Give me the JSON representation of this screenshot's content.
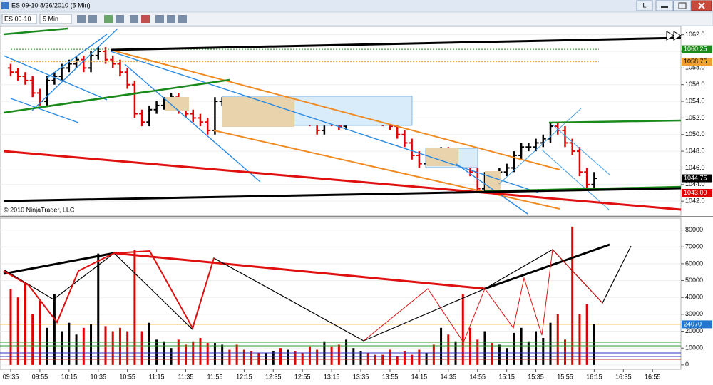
{
  "window": {
    "title": "ES 09-10  8/26/2010 (5 Min)",
    "instrument": "ES 09-10",
    "interval": "5 Min",
    "button": "L"
  },
  "chart_data": [
    {
      "type": "ohlc",
      "copyright": "© 2010 NinjaTrader, LLC",
      "up_color": "#000000",
      "down_color": "#e00000",
      "ylim": [
        1040.3,
        1063
      ],
      "yticks": [
        {
          "value": 1042,
          "label": "1042.0"
        },
        {
          "value": 1044,
          "label": "1044.0"
        },
        {
          "value": 1046,
          "label": "1046.0"
        },
        {
          "value": 1048,
          "label": "1048.0"
        },
        {
          "value": 1050,
          "label": "1050.0"
        },
        {
          "value": 1052,
          "label": "1052.0"
        },
        {
          "value": 1054,
          "label": "1054.0"
        },
        {
          "value": 1056,
          "label": "1056.0"
        },
        {
          "value": 1058,
          "label": "1058.0"
        },
        {
          "value": 1060,
          "label": "1060.0"
        },
        {
          "value": 1062,
          "label": "1062.0"
        }
      ],
      "price_markers": [
        {
          "value": 1060.25,
          "label": "1060.25",
          "color": "#1a8a1a"
        },
        {
          "value": 1058.75,
          "label": "1058.75",
          "color": "#f0a030"
        },
        {
          "value": 1044.75,
          "label": "1044.75",
          "color": "#000000"
        },
        {
          "value": 1043,
          "label": "1043.00",
          "color": "#e00000"
        }
      ],
      "bars": [
        [
          1058,
          1058.5,
          1057,
          1057.5
        ],
        [
          1057.5,
          1058,
          1056.5,
          1057
        ],
        [
          1057,
          1057.5,
          1056,
          1056.5
        ],
        [
          1056.5,
          1057,
          1054.5,
          1055
        ],
        [
          1055,
          1055.5,
          1053.5,
          1054
        ],
        [
          1054,
          1057,
          1053.5,
          1056.5
        ],
        [
          1056.5,
          1057.5,
          1056,
          1057
        ],
        [
          1057,
          1058.5,
          1056.5,
          1058
        ],
        [
          1058,
          1059,
          1057.5,
          1058.5
        ],
        [
          1058.5,
          1059.5,
          1058,
          1059
        ],
        [
          1059,
          1059.5,
          1057.5,
          1058
        ],
        [
          1058,
          1060,
          1057.5,
          1059.5
        ],
        [
          1059.5,
          1060.5,
          1059,
          1060
        ],
        [
          1060,
          1060.5,
          1058.5,
          1059
        ],
        [
          1059,
          1059.5,
          1058,
          1058.5
        ],
        [
          1058.5,
          1059,
          1057,
          1057.5
        ],
        [
          1057.5,
          1058,
          1055.5,
          1056
        ],
        [
          1056,
          1056.5,
          1052,
          1052.5
        ],
        [
          1052.5,
          1053,
          1051,
          1051.5
        ],
        [
          1051.5,
          1053.5,
          1051,
          1053
        ],
        [
          1053,
          1054,
          1052.5,
          1053.5
        ],
        [
          1053.5,
          1054.5,
          1053,
          1054
        ],
        [
          1054,
          1055,
          1053.5,
          1054.5
        ],
        [
          1054.5,
          1055,
          1052.5,
          1053
        ],
        [
          1053,
          1053.5,
          1052,
          1052.5
        ],
        [
          1052.5,
          1053,
          1051.5,
          1052
        ],
        [
          1052,
          1052.5,
          1051,
          1051.5
        ],
        [
          1051.5,
          1052,
          1050,
          1050.5
        ],
        [
          1050.5,
          1054.5,
          1050,
          1054
        ],
        [
          1054,
          1054.5,
          1053.5,
          1054
        ],
        [
          1054,
          1054.5,
          1053,
          1053.5
        ],
        [
          1053.5,
          1054,
          1052.5,
          1053
        ],
        [
          1053,
          1053.5,
          1052,
          1052.5
        ],
        [
          1052.5,
          1053,
          1051.5,
          1052
        ],
        [
          1052,
          1052.5,
          1051,
          1051.5
        ],
        [
          1051.5,
          1053.5,
          1051,
          1053
        ],
        [
          1053,
          1054,
          1052.5,
          1053.5
        ],
        [
          1053.5,
          1054,
          1052.5,
          1053
        ],
        [
          1053,
          1054,
          1052.5,
          1053.5
        ],
        [
          1053.5,
          1054,
          1052,
          1052.5
        ],
        [
          1052.5,
          1053,
          1051.5,
          1052
        ],
        [
          1052,
          1052.5,
          1051,
          1051.5
        ],
        [
          1051.5,
          1052,
          1050,
          1050.5
        ],
        [
          1050.5,
          1052.5,
          1050,
          1052
        ],
        [
          1052,
          1052.5,
          1051,
          1051.5
        ],
        [
          1051.5,
          1052,
          1050.5,
          1051
        ],
        [
          1051,
          1052.5,
          1050.5,
          1052
        ],
        [
          1052,
          1053,
          1051.5,
          1052.5
        ],
        [
          1052.5,
          1053.5,
          1052,
          1053
        ],
        [
          1053,
          1053.5,
          1052,
          1052.5
        ],
        [
          1052.5,
          1053,
          1051.5,
          1052
        ],
        [
          1052,
          1052.5,
          1051,
          1051.5
        ],
        [
          1051.5,
          1052,
          1050.5,
          1051
        ],
        [
          1051,
          1051.5,
          1049.5,
          1050
        ],
        [
          1050,
          1050.5,
          1048.5,
          1049
        ],
        [
          1049,
          1049.5,
          1047,
          1047.5
        ],
        [
          1047.5,
          1048,
          1046,
          1046.5
        ],
        [
          1046.5,
          1048,
          1046,
          1047.5
        ],
        [
          1047.5,
          1048,
          1046.5,
          1047
        ],
        [
          1047,
          1048.5,
          1046.5,
          1048
        ],
        [
          1048,
          1048.5,
          1047,
          1047.5
        ],
        [
          1047.5,
          1048,
          1047,
          1047.5
        ],
        [
          1047.5,
          1048,
          1046,
          1046.5
        ],
        [
          1046.5,
          1047,
          1045,
          1045.5
        ],
        [
          1045.5,
          1046,
          1043,
          1043.5
        ],
        [
          1043.5,
          1045.5,
          1043,
          1045
        ],
        [
          1045,
          1045.5,
          1044,
          1044.5
        ],
        [
          1044.5,
          1046,
          1044,
          1045.5
        ],
        [
          1045.5,
          1046.5,
          1045,
          1046
        ],
        [
          1046,
          1048,
          1045.5,
          1047.5
        ],
        [
          1047.5,
          1049,
          1047,
          1048.5
        ],
        [
          1048.5,
          1049,
          1048,
          1048.5
        ],
        [
          1048.5,
          1049.5,
          1048,
          1049
        ],
        [
          1049,
          1050,
          1048.5,
          1049.5
        ],
        [
          1049.5,
          1051.5,
          1049,
          1051
        ],
        [
          1051,
          1051.5,
          1050,
          1050.5
        ],
        [
          1050.5,
          1051,
          1048.5,
          1049
        ],
        [
          1049,
          1049.5,
          1047.5,
          1048
        ],
        [
          1048,
          1048.5,
          1045,
          1045.5
        ],
        [
          1045.5,
          1046,
          1043.5,
          1044
        ],
        [
          1044,
          1045.5,
          1043.5,
          1044.75
        ]
      ]
    },
    {
      "type": "volume",
      "ylim": [
        -2600,
        87000
      ],
      "yticks": [
        0,
        10000,
        20000,
        30000,
        40000,
        50000,
        60000,
        70000,
        80000
      ],
      "marker": {
        "value": 24070,
        "label": "24070",
        "color": "#1f77d0"
      },
      "xticks": [
        "09:35",
        "09:55",
        "10:15",
        "10:35",
        "10:55",
        "11:15",
        "11:35",
        "11:55",
        "12:15",
        "12:35",
        "12:55",
        "13:15",
        "13:35",
        "13:55",
        "14:15",
        "14:35",
        "14:55",
        "15:15",
        "15:35",
        "15:55",
        "16:15",
        "16:35",
        "16:55"
      ],
      "values": [
        45000,
        40000,
        48000,
        30000,
        38000,
        22000,
        42000,
        20000,
        25000,
        18000,
        22000,
        24000,
        66000,
        23000,
        20000,
        22000,
        20000,
        68000,
        20000,
        25000,
        15000,
        14000,
        10000,
        15000,
        12000,
        14000,
        16000,
        13000,
        13000,
        12000,
        9000,
        12000,
        9000,
        8000,
        7000,
        7000,
        8000,
        10000,
        9000,
        8000,
        7000,
        11000,
        9000,
        14000,
        11000,
        12000,
        15000,
        10000,
        8000,
        7000,
        6000,
        6000,
        9000,
        5000,
        8000,
        6000,
        9000,
        7000,
        12000,
        22000,
        18000,
        14000,
        42000,
        22000,
        15000,
        20000,
        13000,
        12000,
        10000,
        19000,
        22000,
        14000,
        20000,
        16000,
        25000,
        30000,
        15000,
        82000,
        30000,
        36000,
        24070
      ]
    }
  ]
}
